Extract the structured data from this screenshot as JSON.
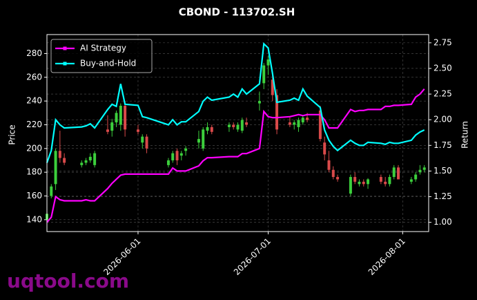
{
  "chart_data": {
    "type": "candlestick",
    "title": "CBOND - 113702.SH",
    "ylabel": "Price",
    "y2label": "Return",
    "watermark": "uqtool.com",
    "x": [
      "2026-05-11",
      "2026-05-12",
      "2026-05-13",
      "2026-05-14",
      "2026-05-15",
      "2026-05-19",
      "2026-05-20",
      "2026-05-21",
      "2026-05-22",
      "2026-05-25",
      "2026-05-26",
      "2026-05-27",
      "2026-05-28",
      "2026-05-29",
      "2026-06-01",
      "2026-06-02",
      "2026-06-03",
      "2026-06-08",
      "2026-06-09",
      "2026-06-10",
      "2026-06-11",
      "2026-06-12",
      "2026-06-15",
      "2026-06-16",
      "2026-06-17",
      "2026-06-18",
      "2026-06-22",
      "2026-06-23",
      "2026-06-24",
      "2026-06-25",
      "2026-06-26",
      "2026-06-29",
      "2026-06-30",
      "2026-07-01",
      "2026-07-02",
      "2026-07-03",
      "2026-07-06",
      "2026-07-07",
      "2026-07-08",
      "2026-07-09",
      "2026-07-10",
      "2026-07-13",
      "2026-07-14",
      "2026-07-15",
      "2026-07-16",
      "2026-07-17",
      "2026-07-20",
      "2026-07-21",
      "2026-07-22",
      "2026-07-23",
      "2026-07-24",
      "2026-07-27",
      "2026-07-28",
      "2026-07-29",
      "2026-07-30",
      "2026-07-31",
      "2026-08-03",
      "2026-08-04",
      "2026-08-05",
      "2026-08-06"
    ],
    "open": [
      140,
      160,
      170,
      198,
      192,
      186,
      188,
      190,
      186,
      216,
      215,
      222,
      220,
      236,
      216,
      205,
      210,
      186,
      190,
      198,
      194,
      198,
      205,
      200,
      215,
      218,
      218,
      220,
      216,
      215,
      222,
      238,
      255,
      270,
      258,
      245,
      222,
      220,
      218,
      222,
      226,
      232,
      205,
      190,
      182,
      176,
      162,
      176,
      170,
      172,
      170,
      176,
      172,
      170,
      176,
      184,
      172,
      174,
      180,
      182
    ],
    "high": [
      150,
      170,
      200,
      215,
      196,
      190,
      192,
      196,
      198,
      228,
      225,
      232,
      238,
      240,
      220,
      212,
      212,
      192,
      198,
      200,
      198,
      202,
      215,
      218,
      222,
      220,
      222,
      222,
      222,
      226,
      226,
      248,
      272,
      278,
      262,
      250,
      226,
      224,
      226,
      228,
      230,
      236,
      210,
      198,
      185,
      178,
      178,
      180,
      174,
      174,
      175,
      178,
      176,
      178,
      186,
      186,
      176,
      180,
      186,
      186
    ],
    "low": [
      133,
      158,
      165,
      188,
      186,
      184,
      186,
      188,
      184,
      212,
      210,
      218,
      215,
      210,
      212,
      200,
      196,
      184,
      188,
      186,
      190,
      194,
      200,
      198,
      212,
      212,
      214,
      216,
      214,
      213,
      218,
      232,
      250,
      262,
      240,
      212,
      218,
      216,
      214,
      220,
      222,
      206,
      190,
      180,
      174,
      172,
      160,
      170,
      168,
      168,
      166,
      170,
      168,
      168,
      174,
      174,
      170,
      172,
      178,
      180
    ],
    "close": [
      145,
      168,
      198,
      192,
      188,
      188,
      190,
      193,
      196,
      214,
      222,
      230,
      236,
      216,
      214,
      210,
      200,
      190,
      196,
      190,
      196,
      200,
      208,
      216,
      218,
      214,
      220,
      218,
      220,
      224,
      220,
      240,
      270,
      275,
      245,
      216,
      220,
      222,
      224,
      226,
      224,
      208,
      195,
      182,
      176,
      174,
      176,
      172,
      172,
      170,
      174,
      172,
      170,
      176,
      184,
      174,
      174,
      178,
      182,
      184
    ],
    "up_color": "#3ccf3c",
    "down_color": "#d94a4a",
    "series": [
      {
        "name": "AI Strategy",
        "color": "#ff00ff",
        "axis": "y2",
        "values": [
          1.0,
          1.05,
          1.25,
          1.22,
          1.21,
          1.21,
          1.22,
          1.21,
          1.21,
          1.33,
          1.38,
          1.42,
          1.46,
          1.47,
          1.47,
          1.47,
          1.47,
          1.47,
          1.53,
          1.5,
          1.5,
          1.5,
          1.55,
          1.6,
          1.63,
          1.63,
          1.64,
          1.64,
          1.64,
          1.67,
          1.67,
          1.72,
          2.08,
          2.03,
          2.02,
          2.02,
          2.03,
          2.04,
          2.05,
          2.04,
          2.05,
          2.05,
          2.0,
          1.92,
          1.92,
          1.92,
          2.1,
          2.08,
          2.09,
          2.09,
          2.1,
          2.1,
          2.13,
          2.13,
          2.14,
          2.14,
          2.15,
          2.22,
          2.25,
          2.3
        ]
      },
      {
        "name": "Buy-and-Hold",
        "color": "#00ffff",
        "axis": "y2",
        "values": [
          1.58,
          1.7,
          2.0,
          1.95,
          1.92,
          1.93,
          1.94,
          1.96,
          1.92,
          2.1,
          2.15,
          2.13,
          2.35,
          2.15,
          2.14,
          2.03,
          2.02,
          1.95,
          2.0,
          1.95,
          1.98,
          1.98,
          2.08,
          2.18,
          2.22,
          2.19,
          2.22,
          2.25,
          2.22,
          2.3,
          2.25,
          2.35,
          2.74,
          2.7,
          2.45,
          2.17,
          2.19,
          2.21,
          2.19,
          2.3,
          2.23,
          2.12,
          1.9,
          1.8,
          1.74,
          1.7,
          1.8,
          1.77,
          1.75,
          1.75,
          1.78,
          1.77,
          1.76,
          1.78,
          1.77,
          1.77,
          1.8,
          1.85,
          1.88,
          1.9
        ]
      }
    ],
    "xlim": [
      "2026-05-11",
      "2026-08-07"
    ],
    "xticks": [
      "2026-06-01",
      "2026-07-01",
      "2026-08-01"
    ],
    "ylim": [
      130,
      296
    ],
    "yticks": [
      140,
      160,
      180,
      200,
      220,
      240,
      260,
      280
    ],
    "y2lim": [
      0.91,
      2.83
    ],
    "y2ticks": [
      {
        "value": 1,
        "label": "1.00"
      },
      {
        "value": 1.25,
        "label": "1.25"
      },
      {
        "value": 1.5,
        "label": "1.50"
      },
      {
        "value": 1.75,
        "label": "1.75"
      },
      {
        "value": 2,
        "label": "2.00"
      },
      {
        "value": 2.25,
        "label": "2.25"
      },
      {
        "value": 2.5,
        "label": "2.50"
      },
      {
        "value": 2.75,
        "label": "2.75"
      }
    ],
    "grid": true,
    "legend": "upper left"
  }
}
